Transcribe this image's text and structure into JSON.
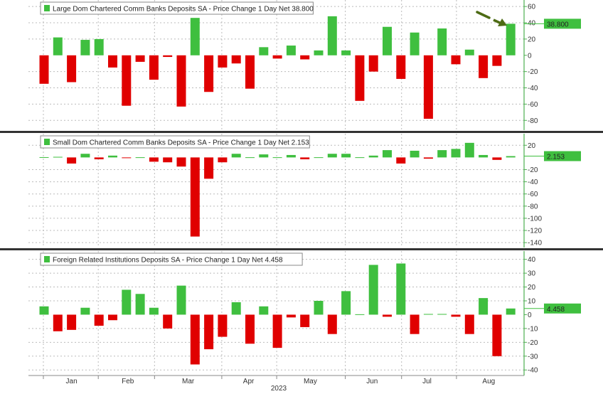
{
  "colors": {
    "positive": "#3fbf3f",
    "negative": "#e00000",
    "axis": "#4caf50",
    "label_box": "#3fbf3f",
    "arrow": "#4d6b14",
    "separator": "#333333"
  },
  "chart_data": [
    {
      "type": "bar",
      "title": "Large Dom Chartered Comm Banks Deposits SA - Price Change 1 Day Net 38.800",
      "last_value_label": "38.800",
      "ylim": [
        -92,
        68
      ],
      "yticks": [
        60,
        40,
        20,
        0,
        -20,
        -40,
        -60,
        -80
      ],
      "grid": true,
      "legend": "top-left",
      "values": [
        -35,
        22,
        -33,
        19,
        20,
        -15,
        -62,
        -8,
        -30,
        -2,
        -63,
        46,
        -45,
        -15,
        -10,
        -41,
        10,
        -4,
        12,
        -5,
        6,
        48,
        6,
        -56,
        -20,
        35,
        -29,
        28,
        -78,
        33,
        -11,
        7,
        -28,
        -13,
        38.8
      ]
    },
    {
      "type": "bar",
      "title": "Small Dom Chartered Comm Banks Deposits SA - Price Change 1 Day Net 2.153",
      "last_value_label": "2.153",
      "ylim": [
        -148,
        39
      ],
      "yticks": [
        20,
        -20,
        -40,
        -60,
        -80,
        -100,
        -120,
        -140
      ],
      "grid": true,
      "legend": "top-left",
      "values": [
        0.5,
        1,
        -10,
        6,
        -3,
        3,
        -1,
        0.3,
        -7,
        -8,
        -15,
        -130,
        -35,
        -8,
        6,
        0.3,
        5,
        0.3,
        4,
        -3,
        0.3,
        6,
        6,
        0.3,
        3,
        12,
        -10,
        11,
        -2,
        12,
        14,
        24,
        4,
        -4,
        2.153
      ]
    },
    {
      "type": "bar",
      "title": "Foreign Related Institutions Deposits SA - Price Change 1 Day Net 4.458",
      "last_value_label": "4.458",
      "ylim": [
        -44,
        46
      ],
      "yticks": [
        40,
        30,
        20,
        10,
        0,
        -10,
        -20,
        -30,
        -40
      ],
      "grid": true,
      "legend": "top-left",
      "values": [
        6,
        -12,
        -11,
        5,
        -8,
        -4,
        18,
        15,
        5,
        -10,
        21,
        -36,
        -25,
        -16,
        9,
        -21,
        6,
        -24,
        -2,
        -9,
        10,
        -14,
        17,
        0.3,
        36,
        -1.5,
        37,
        -14,
        0.5,
        0.5,
        -1.5,
        -14,
        12,
        -30,
        4.458
      ]
    }
  ],
  "x_axis": {
    "months": [
      "Jan",
      "Feb",
      "Mar",
      "Apr",
      "May",
      "Jun",
      "Jul",
      "Aug"
    ],
    "month_centers": [
      2,
      6.1,
      10.5,
      14.9,
      19.4,
      23.9,
      27.9,
      32.4
    ],
    "month_boundaries": [
      0,
      4,
      8.1,
      13,
      17,
      22,
      26.1,
      30.1
    ],
    "year": "2023"
  }
}
